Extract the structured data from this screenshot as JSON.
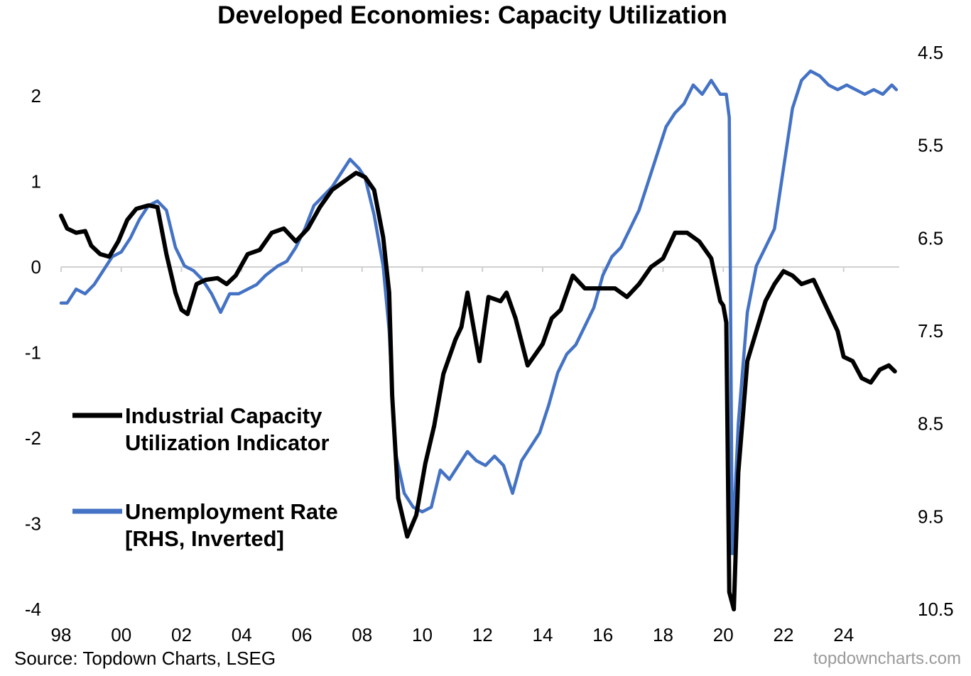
{
  "chart_data": {
    "type": "line",
    "title": "Developed Economies: Capacity Utilization",
    "x_range": [
      1998,
      2025.8
    ],
    "x_ticks": [
      "98",
      "00",
      "02",
      "04",
      "06",
      "08",
      "10",
      "12",
      "14",
      "16",
      "18",
      "20",
      "22",
      "24"
    ],
    "y_left": {
      "ticks": [
        "2",
        "1",
        "0",
        "-1",
        "-2",
        "-3",
        "-4"
      ],
      "range": [
        -4,
        2
      ]
    },
    "y_right": {
      "ticks": [
        "4.5",
        "5.5",
        "6.5",
        "7.5",
        "8.5",
        "9.5",
        "10.5"
      ],
      "range": [
        4.5,
        10.5
      ],
      "inverted": true
    },
    "grid": false,
    "legend_position": "left-middle",
    "series": [
      {
        "name": "Industrial Capacity Utilization Indicator",
        "axis": "left",
        "color": "#000000",
        "x": [
          1998.0,
          1998.2,
          1998.5,
          1998.8,
          1999.0,
          1999.3,
          1999.6,
          1999.9,
          2000.2,
          2000.5,
          2000.9,
          2001.2,
          2001.5,
          2001.8,
          2002.0,
          2002.2,
          2002.5,
          2002.8,
          2003.2,
          2003.5,
          2003.8,
          2004.2,
          2004.6,
          2005.0,
          2005.4,
          2005.8,
          2006.2,
          2006.6,
          2007.0,
          2007.4,
          2007.8,
          2008.1,
          2008.4,
          2008.7,
          2008.9,
          2009.0,
          2009.2,
          2009.5,
          2009.8,
          2010.1,
          2010.4,
          2010.7,
          2011.0,
          2011.1,
          2011.3,
          2011.5,
          2011.9,
          2012.2,
          2012.6,
          2012.8,
          2013.1,
          2013.5,
          2013.9,
          2014.0,
          2014.3,
          2014.6,
          2015.0,
          2015.4,
          2015.8,
          2016.1,
          2016.4,
          2016.8,
          2017.2,
          2017.6,
          2018.0,
          2018.4,
          2018.8,
          2019.2,
          2019.6,
          2019.9,
          2020.0,
          2020.1,
          2020.2,
          2020.35,
          2020.5,
          2020.8,
          2021.1,
          2021.4,
          2021.7,
          2022.0,
          2022.3,
          2022.6,
          2023.0,
          2023.4,
          2023.8,
          2024.0,
          2024.3,
          2024.6,
          2024.9,
          2025.2,
          2025.5,
          2025.7
        ],
        "values": [
          0.6,
          0.45,
          0.4,
          0.42,
          0.25,
          0.15,
          0.12,
          0.3,
          0.55,
          0.68,
          0.72,
          0.7,
          0.15,
          -0.3,
          -0.5,
          -0.55,
          -0.2,
          -0.15,
          -0.13,
          -0.2,
          -0.1,
          0.15,
          0.2,
          0.4,
          0.45,
          0.3,
          0.45,
          0.7,
          0.9,
          1.0,
          1.1,
          1.05,
          0.9,
          0.35,
          -0.3,
          -1.5,
          -2.7,
          -3.15,
          -2.9,
          -2.3,
          -1.85,
          -1.25,
          -0.95,
          -0.85,
          -0.7,
          -0.3,
          -1.1,
          -0.35,
          -0.4,
          -0.3,
          -0.6,
          -1.15,
          -0.95,
          -0.9,
          -0.6,
          -0.5,
          -0.1,
          -0.25,
          -0.25,
          -0.25,
          -0.25,
          -0.35,
          -0.2,
          0.0,
          0.1,
          0.4,
          0.4,
          0.3,
          0.1,
          -0.4,
          -0.45,
          -0.65,
          -3.8,
          -4.0,
          -2.4,
          -1.1,
          -0.75,
          -0.4,
          -0.2,
          -0.05,
          -0.1,
          -0.2,
          -0.15,
          -0.45,
          -0.75,
          -1.05,
          -1.1,
          -1.3,
          -1.35,
          -1.2,
          -1.15,
          -1.22
        ]
      },
      {
        "name": "Unemployment Rate [RHS, Inverted]",
        "axis": "right",
        "color": "#4472C4",
        "x": [
          1998.0,
          1998.2,
          1998.5,
          1998.8,
          1999.1,
          1999.4,
          1999.7,
          2000.0,
          2000.3,
          2000.6,
          2000.9,
          2001.2,
          2001.5,
          2001.8,
          2002.1,
          2002.4,
          2002.7,
          2003.0,
          2003.3,
          2003.6,
          2003.9,
          2004.2,
          2004.5,
          2004.8,
          2005.2,
          2005.5,
          2005.8,
          2006.1,
          2006.4,
          2006.7,
          2007.0,
          2007.3,
          2007.6,
          2007.9,
          2008.1,
          2008.4,
          2008.7,
          2008.9,
          2009.1,
          2009.4,
          2009.7,
          2010.0,
          2010.3,
          2010.6,
          2010.9,
          2011.2,
          2011.5,
          2011.8,
          2012.1,
          2012.4,
          2012.7,
          2013.0,
          2013.3,
          2013.6,
          2013.9,
          2014.2,
          2014.5,
          2014.8,
          2015.1,
          2015.4,
          2015.7,
          2016.0,
          2016.3,
          2016.6,
          2016.9,
          2017.2,
          2017.5,
          2017.8,
          2018.1,
          2018.4,
          2018.7,
          2019.0,
          2019.3,
          2019.6,
          2019.9,
          2020.1,
          2020.2,
          2020.3,
          2020.5,
          2020.8,
          2021.1,
          2021.4,
          2021.7,
          2022.0,
          2022.3,
          2022.6,
          2022.9,
          2023.2,
          2023.5,
          2023.8,
          2024.1,
          2024.4,
          2024.7,
          2025.0,
          2025.3,
          2025.6,
          2025.75
        ],
        "values": [
          7.2,
          7.2,
          7.05,
          7.1,
          7.0,
          6.85,
          6.7,
          6.65,
          6.5,
          6.3,
          6.15,
          6.1,
          6.2,
          6.6,
          6.8,
          6.85,
          6.95,
          7.1,
          7.3,
          7.1,
          7.1,
          7.05,
          7.0,
          6.9,
          6.8,
          6.75,
          6.6,
          6.4,
          6.15,
          6.05,
          5.95,
          5.8,
          5.65,
          5.75,
          5.85,
          6.25,
          6.8,
          7.5,
          8.8,
          9.25,
          9.4,
          9.45,
          9.4,
          9.0,
          9.1,
          8.95,
          8.8,
          8.9,
          8.95,
          8.85,
          8.95,
          9.25,
          8.9,
          8.75,
          8.6,
          8.3,
          7.95,
          7.75,
          7.65,
          7.45,
          7.25,
          6.9,
          6.7,
          6.6,
          6.4,
          6.2,
          5.9,
          5.6,
          5.3,
          5.15,
          5.05,
          4.85,
          4.95,
          4.8,
          4.95,
          4.95,
          5.2,
          9.9,
          8.5,
          7.3,
          6.8,
          6.6,
          6.4,
          5.75,
          5.1,
          4.8,
          4.7,
          4.75,
          4.85,
          4.9,
          4.85,
          4.9,
          4.95,
          4.9,
          4.95,
          4.85,
          4.9
        ]
      }
    ]
  },
  "legend": {
    "item1_line1": "Industrial Capacity",
    "item1_line2": "Utilization Indicator",
    "item2_line1": "Unemployment Rate",
    "item2_line2": "[RHS, Inverted]"
  },
  "footer": {
    "source": "Source: Topdown Charts, LSEG",
    "watermark": "topdowncharts.com"
  }
}
